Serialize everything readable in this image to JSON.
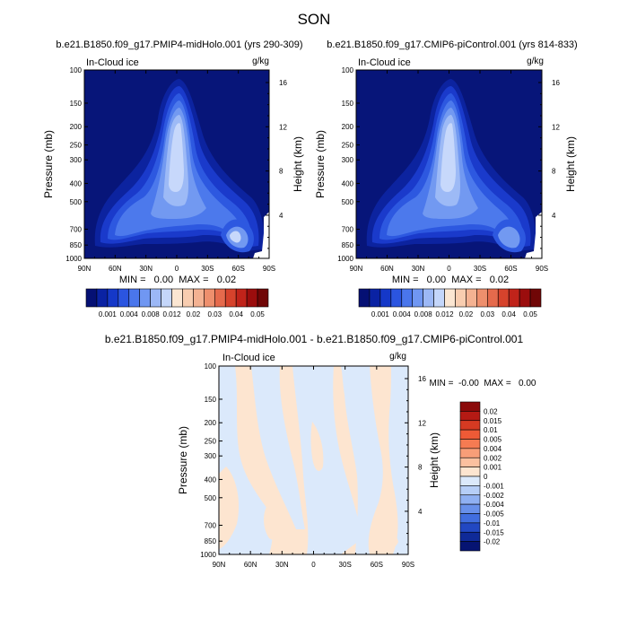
{
  "page_title": "SON",
  "chart_data": [
    {
      "type": "heatmap",
      "title": "b.e21.B1850.f09_g17.PMIP4-midHolo.001 (yrs 290-309)",
      "left_label": "In-Cloud ice",
      "units": "g/kg",
      "ylabel": "Pressure (mb)",
      "y2label": "Height (km)",
      "x_ticks": [
        "90N",
        "60N",
        "30N",
        "0",
        "30S",
        "60S",
        "90S"
      ],
      "y_ticks": [
        "100",
        "150",
        "200",
        "250",
        "300",
        "400",
        "500",
        "700",
        "850",
        "1000"
      ],
      "height_ticks": [
        "16",
        "12",
        "8",
        "4"
      ],
      "min_max": "MIN =   0.00  MAX =   0.02",
      "colorbar_labels": [
        "0.001",
        "0.004",
        "0.008",
        "0.012",
        "0.02",
        "0.03",
        "0.04",
        "0.05"
      ],
      "colorbar_colors": [
        "#051074",
        "#0a22a3",
        "#1538c8",
        "#2b55e0",
        "#4a76ec",
        "#7097f2",
        "#9cb8f6",
        "#c4d6fa",
        "#fbe6d2",
        "#f8cdb0",
        "#f4b292",
        "#ee8f6d",
        "#e56a4c",
        "#d6432c",
        "#c0231a",
        "#9b0d0d",
        "#700606"
      ],
      "grid": false
    },
    {
      "type": "heatmap",
      "title": "b.e21.B1850.f09_g17.CMIP6-piControl.001 (yrs 814-833)",
      "left_label": "In-Cloud ice",
      "units": "g/kg",
      "ylabel": "Pressure (mb)",
      "y2label": "Height (km)",
      "x_ticks": [
        "90N",
        "60N",
        "30N",
        "0",
        "30S",
        "60S",
        "90S"
      ],
      "y_ticks": [
        "100",
        "150",
        "200",
        "250",
        "300",
        "400",
        "500",
        "700",
        "850",
        "1000"
      ],
      "height_ticks": [
        "16",
        "12",
        "8",
        "4"
      ],
      "min_max": "MIN =   0.00  MAX =   0.02",
      "colorbar_labels": [
        "0.001",
        "0.004",
        "0.008",
        "0.012",
        "0.02",
        "0.03",
        "0.04",
        "0.05"
      ],
      "colorbar_colors": [
        "#051074",
        "#0a22a3",
        "#1538c8",
        "#2b55e0",
        "#4a76ec",
        "#7097f2",
        "#9cb8f6",
        "#c4d6fa",
        "#fbe6d2",
        "#f8cdb0",
        "#f4b292",
        "#ee8f6d",
        "#e56a4c",
        "#d6432c",
        "#c0231a",
        "#9b0d0d",
        "#700606"
      ],
      "grid": false
    },
    {
      "type": "heatmap",
      "title": "b.e21.B1850.f09_g17.PMIP4-midHolo.001 - b.e21.B1850.f09_g17.CMIP6-piControl.001",
      "left_label": "In-Cloud ice",
      "units": "g/kg",
      "ylabel": "Pressure (mb)",
      "y2label": "Height (km)",
      "x_ticks": [
        "90N",
        "60N",
        "30N",
        "0",
        "30S",
        "60S",
        "90S"
      ],
      "y_ticks": [
        "100",
        "150",
        "200",
        "250",
        "300",
        "400",
        "500",
        "700",
        "850",
        "1000"
      ],
      "height_ticks": [
        "16",
        "12",
        "8",
        "4"
      ],
      "min_max": "MIN =  -0.00  MAX =   0.00",
      "colorbar_labels": [
        "0.02",
        "0.015",
        "0.01",
        "0.005",
        "0.004",
        "0.002",
        "0.001",
        "0",
        "-0.001",
        "-0.002",
        "-0.004",
        "-0.005",
        "-0.01",
        "-0.015",
        "-0.02"
      ],
      "colorbar_colors": [
        "#8b0a0a",
        "#b51a14",
        "#d63a22",
        "#ee5a36",
        "#f57b52",
        "#f89e78",
        "#fbc09f",
        "#fde5d0",
        "#dbe9fb",
        "#b6cef7",
        "#8fb0f2",
        "#6890ea",
        "#416edf",
        "#2248c2",
        "#0f2a98",
        "#061472"
      ],
      "grid": false
    }
  ]
}
